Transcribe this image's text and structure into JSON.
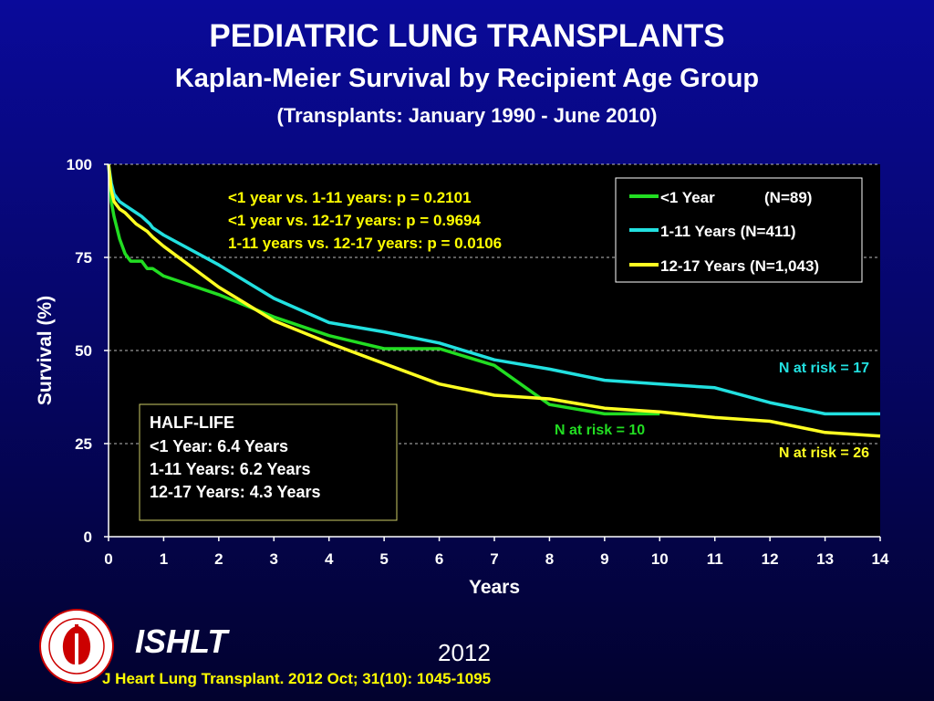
{
  "header": {
    "title": "PEDIATRIC LUNG TRANSPLANTS",
    "subtitle": "Kaplan-Meier Survival by Recipient Age Group",
    "period": "(Transplants: January 1990 - June 2010)"
  },
  "chart_data": {
    "type": "line",
    "xlabel": "Years",
    "ylabel": "Survival (%)",
    "xlim": [
      0,
      14
    ],
    "ylim": [
      0,
      100
    ],
    "xticks": [
      0,
      1,
      2,
      3,
      4,
      5,
      6,
      7,
      8,
      9,
      10,
      11,
      12,
      13,
      14
    ],
    "yticks": [
      0,
      25,
      50,
      75,
      100
    ],
    "grid": "horizontal-dashed",
    "legend_position": "top-right",
    "series": [
      {
        "name": "<1 Year",
        "legend_n": "(N=89)",
        "color": "#22dd22",
        "x": [
          0,
          0.05,
          0.1,
          0.2,
          0.3,
          0.4,
          0.6,
          0.7,
          0.8,
          0.9,
          1.0,
          1.5,
          2,
          3,
          4,
          5,
          6,
          7,
          8,
          9,
          9.5,
          10
        ],
        "y": [
          100,
          90,
          86,
          80,
          76,
          74,
          74,
          72,
          72,
          71,
          70,
          67.5,
          65,
          59,
          54,
          50.5,
          50.5,
          46,
          35.5,
          33,
          33,
          33
        ]
      },
      {
        "name": "1-11 Years",
        "legend_n": "(N=411)",
        "color": "#22e0e0",
        "x": [
          0,
          0.05,
          0.1,
          0.2,
          0.3,
          0.5,
          0.6,
          0.75,
          0.8,
          1,
          2,
          3,
          4,
          5,
          6,
          7,
          8,
          9,
          10,
          11,
          12,
          13,
          14
        ],
        "y": [
          100,
          95,
          92,
          90,
          89,
          87,
          86,
          84,
          83,
          81,
          73,
          64,
          57.5,
          55,
          52,
          47.5,
          45,
          42,
          41,
          40,
          36,
          33,
          33
        ]
      },
      {
        "name": "12-17 Years",
        "legend_n": "(N=1,043)",
        "color": "#ffff22",
        "x": [
          0,
          0.05,
          0.1,
          0.2,
          0.3,
          0.5,
          0.7,
          0.8,
          1,
          2,
          3,
          4,
          5,
          6,
          7,
          8,
          9,
          10,
          11,
          12,
          12.5,
          13,
          14
        ],
        "y": [
          100,
          93,
          90,
          88,
          87,
          84,
          82,
          80.5,
          78,
          67,
          58,
          52,
          46.5,
          41,
          38,
          37,
          34.5,
          33.5,
          32,
          31,
          29.5,
          28,
          27
        ]
      }
    ],
    "legend_entries": [
      "<1 Year",
      "(N=89)",
      "1-11 Years  (N=411)",
      "12-17 Years (N=1,043)"
    ],
    "annotations": {
      "pvalues": [
        "<1 year vs. 1-11 years: p = 0.2101",
        "<1 year vs. 12-17 years: p = 0.9694",
        "1-11 years vs. 12-17 years: p = 0.0106"
      ],
      "half_life": [
        "HALF-LIFE",
        "<1 Year: 6.4 Years",
        "1-11 Years: 6.2 Years",
        "12-17 Years: 4.3 Years"
      ],
      "at_risk": {
        "lt1": "N at risk = 10",
        "age1_11": "N at risk =  17",
        "age12_17": "N at risk = 26"
      }
    }
  },
  "footer": {
    "society": "ISHLT",
    "year": "2012",
    "citation": "J Heart Lung Transplant.  2012 Oct; 31(10): 1045-1095"
  },
  "colors": {
    "accent_yellow": "#ffff00",
    "background_top": "#0a0a9a",
    "plot_background": "#000000"
  },
  "icons": {
    "logo": "ishlt-logo-icon"
  }
}
